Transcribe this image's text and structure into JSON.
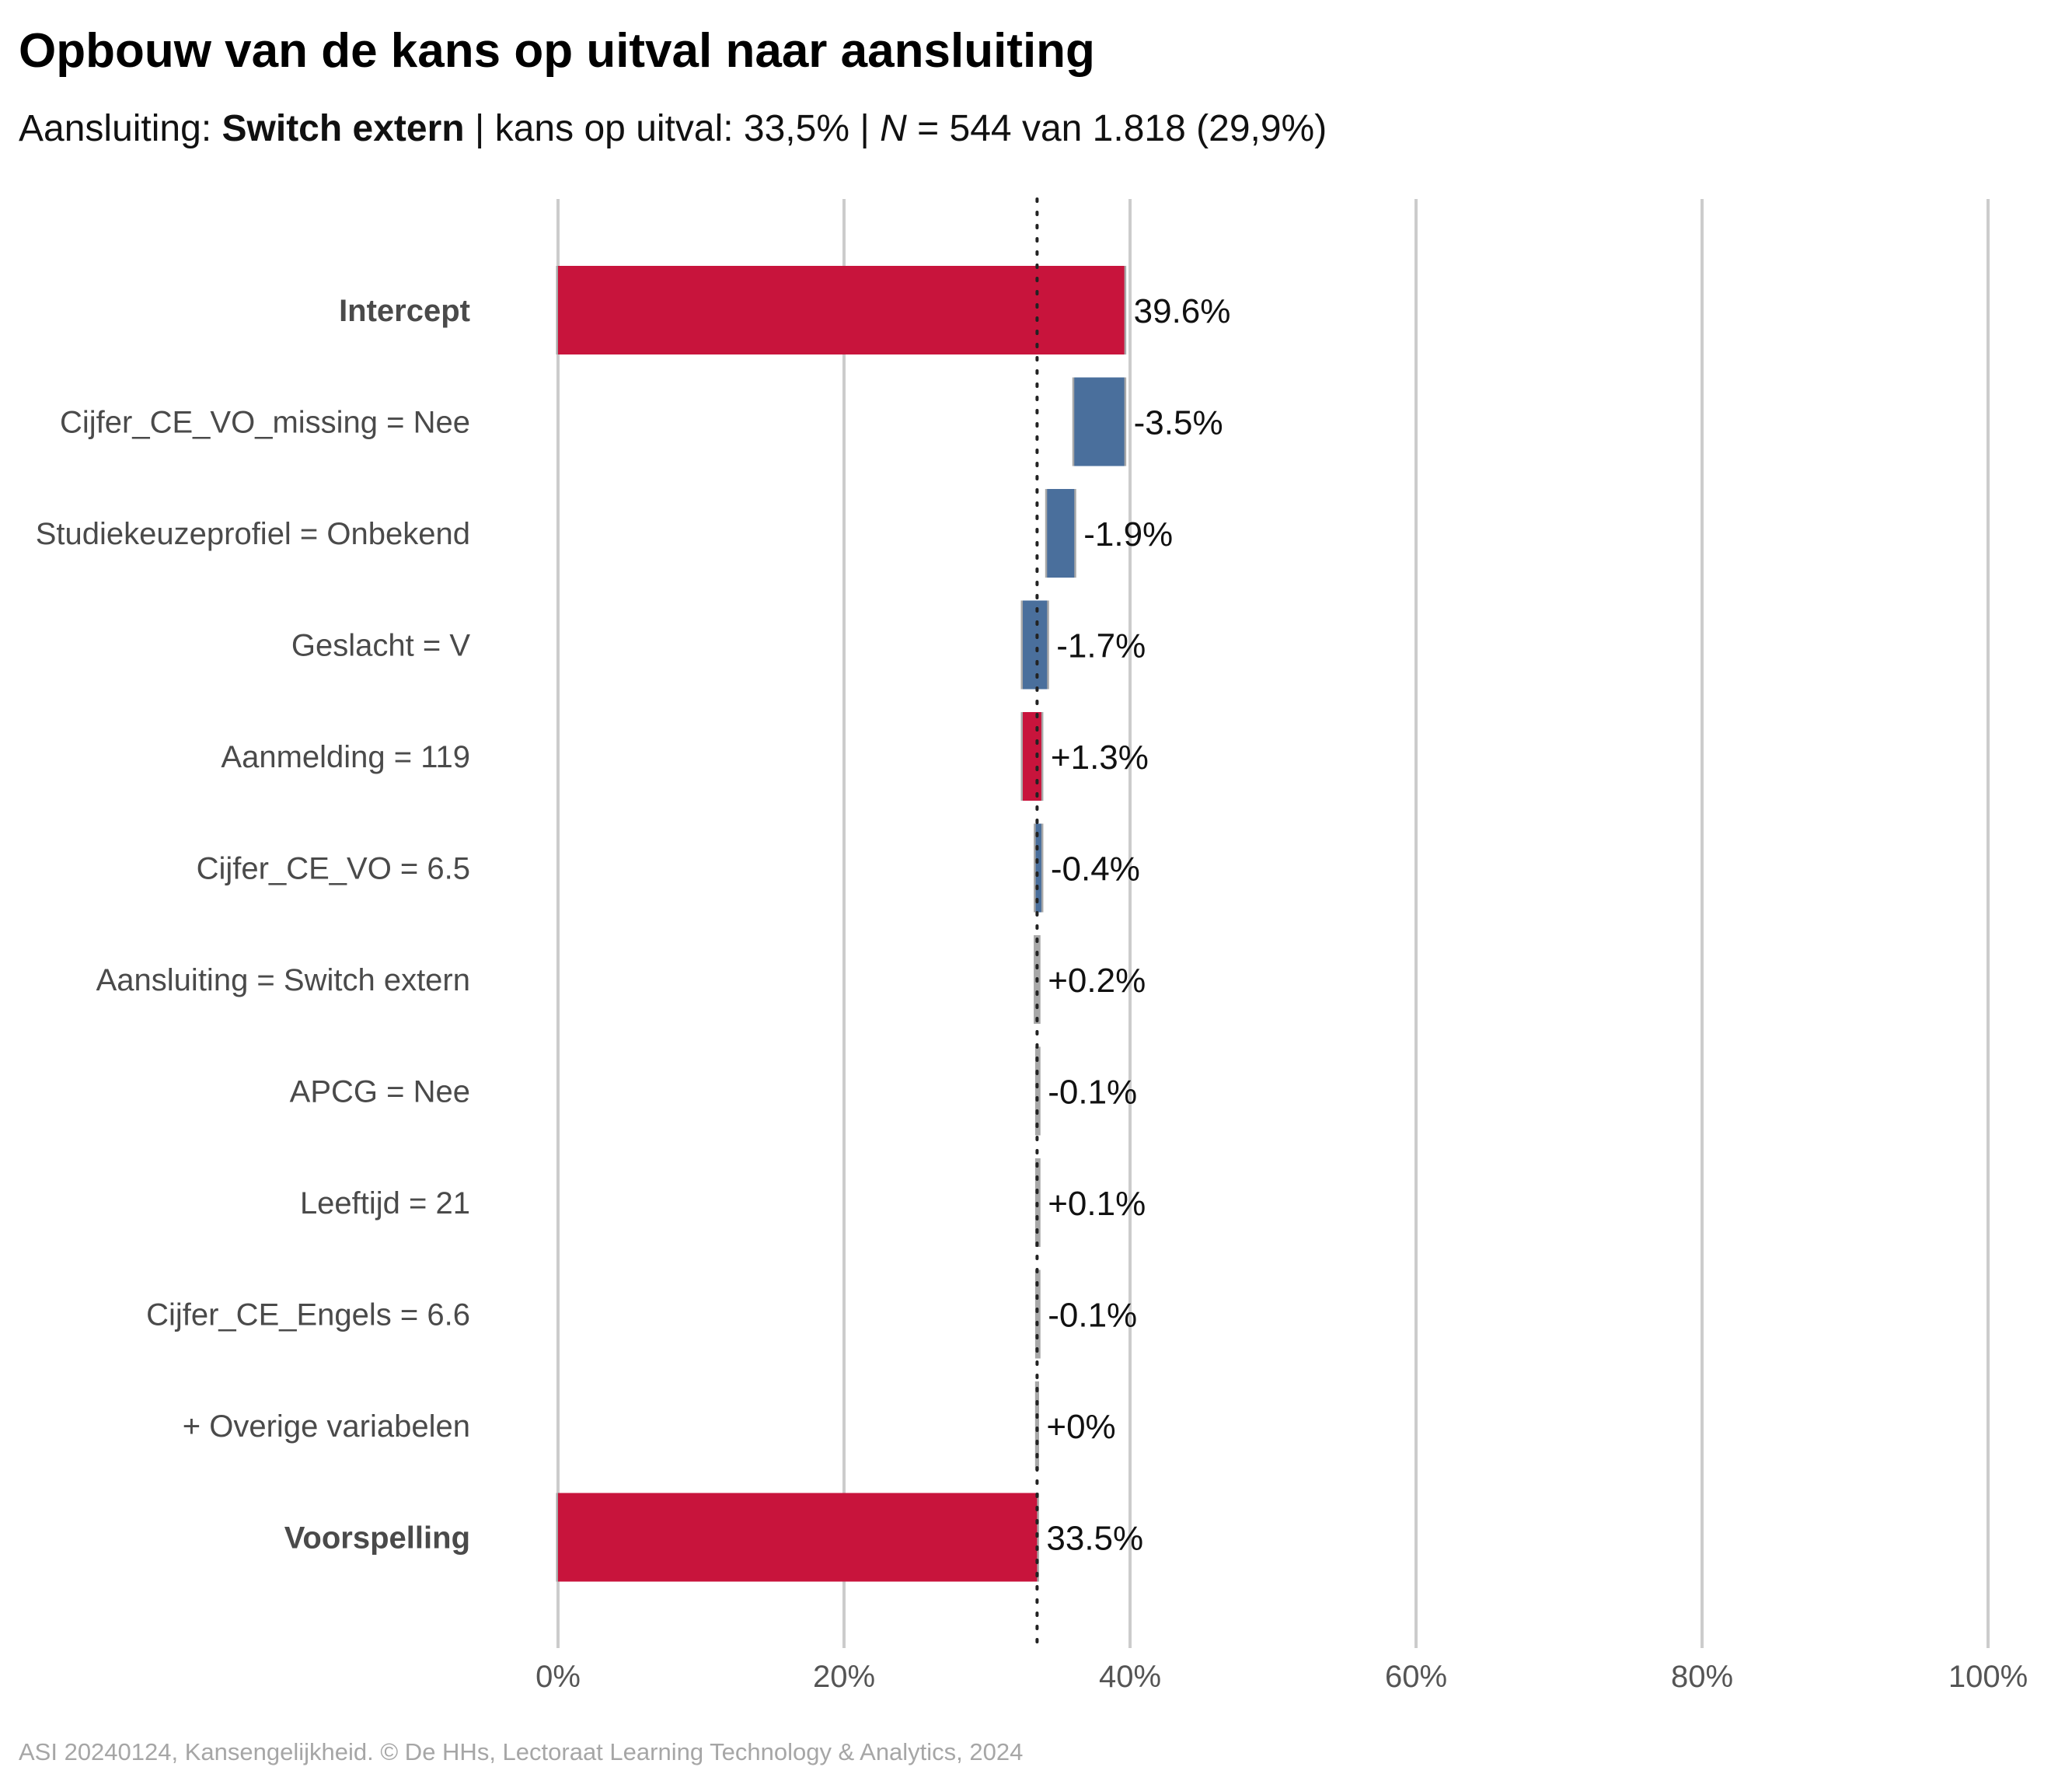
{
  "chart_data": {
    "type": "bar",
    "subtype": "waterfall",
    "title": "Opbouw van de kans op uitval naar aansluiting",
    "subtitle": {
      "prefix": "Aansluiting: ",
      "group": "Switch extern",
      "middle": " | kans op uitval: 33,5% | ",
      "n_symbol": "N",
      "n_text": " = 544 van 1.818 (29,9%)"
    },
    "xlim": [
      0,
      100
    ],
    "x_ticks": [
      {
        "value": 0,
        "label": "0%"
      },
      {
        "value": 20,
        "label": "20%"
      },
      {
        "value": 40,
        "label": "40%"
      },
      {
        "value": 60,
        "label": "60%"
      },
      {
        "value": 80,
        "label": "80%"
      },
      {
        "value": 100,
        "label": "100%"
      }
    ],
    "reference_line": 33.5,
    "grid": true,
    "colors": {
      "positive": "#c8143c",
      "negative": "#4a6f9c",
      "neutral": "#a8a8a8",
      "grid": "#cccccc",
      "connector": "#a8a8a8"
    },
    "rows": [
      {
        "label": "Intercept",
        "start": 0,
        "end": 39.6,
        "value_label": "39.6%",
        "kind": "positive",
        "bold": true
      },
      {
        "label": "Cijfer_CE_VO_missing = Nee",
        "start": 39.6,
        "end": 36.1,
        "value_label": "-3.5%",
        "kind": "negative"
      },
      {
        "label": "Studiekeuzeprofiel = Onbekend",
        "start": 36.1,
        "end": 34.2,
        "value_label": "-1.9%",
        "kind": "negative"
      },
      {
        "label": "Geslacht = V",
        "start": 34.2,
        "end": 32.5,
        "value_label": "-1.7%",
        "kind": "negative"
      },
      {
        "label": "Aanmelding = 119",
        "start": 32.5,
        "end": 33.8,
        "value_label": "+1.3%",
        "kind": "positive"
      },
      {
        "label": "Cijfer_CE_VO = 6.5",
        "start": 33.8,
        "end": 33.4,
        "value_label": "-0.4%",
        "kind": "negative"
      },
      {
        "label": "Aansluiting = Switch extern",
        "start": 33.4,
        "end": 33.6,
        "value_label": "+0.2%",
        "kind": "neutral"
      },
      {
        "label": "APCG = Nee",
        "start": 33.6,
        "end": 33.5,
        "value_label": "-0.1%",
        "kind": "neutral"
      },
      {
        "label": "Leeftijd = 21",
        "start": 33.5,
        "end": 33.6,
        "value_label": "+0.1%",
        "kind": "neutral"
      },
      {
        "label": "Cijfer_CE_Engels = 6.6",
        "start": 33.6,
        "end": 33.5,
        "value_label": "-0.1%",
        "kind": "neutral"
      },
      {
        "label": "+ Overige variabelen",
        "start": 33.5,
        "end": 33.5,
        "value_label": "+0%",
        "kind": "neutral"
      },
      {
        "label": "Voorspelling",
        "start": 0,
        "end": 33.5,
        "value_label": "33.5%",
        "kind": "positive",
        "bold": true
      }
    ]
  },
  "caption": "ASI 20240124, Kansengelijkheid. © De HHs, Lectoraat Learning Technology & Analytics, 2024"
}
